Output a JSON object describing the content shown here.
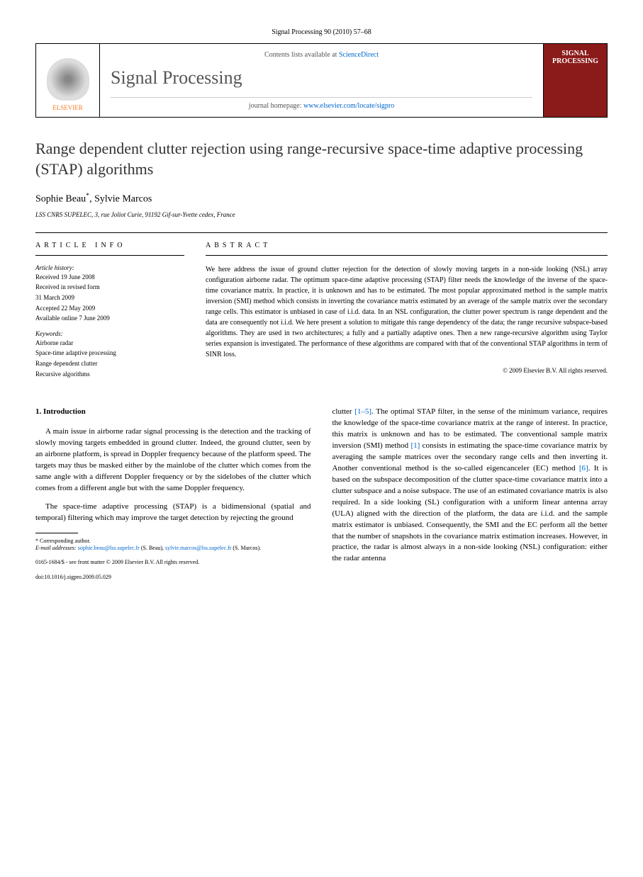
{
  "top_citation": "Signal Processing 90 (2010) 57–68",
  "header": {
    "contents_prefix": "Contents lists available at ",
    "contents_link": "ScienceDirect",
    "journal_name": "Signal Processing",
    "homepage_prefix": "journal homepage: ",
    "homepage_link": "www.elsevier.com/locate/sigpro",
    "publisher_label": "ELSEVIER",
    "cover_title": "SIGNAL PROCESSING"
  },
  "article": {
    "title": "Range dependent clutter rejection using range-recursive space-time adaptive processing (STAP) algorithms",
    "authors_html": "Sophie Beau *, Sylvie Marcos",
    "author1": "Sophie Beau",
    "author_sep": ", ",
    "author2": "Sylvie Marcos",
    "corr_mark": "*",
    "affiliation": "LSS CNRS SUPELEC, 3, rue Joliot Curie, 91192 Gif-sur-Yvette cedex, France"
  },
  "info": {
    "header": "ARTICLE INFO",
    "history_head": "Article history:",
    "received": "Received 19 June 2008",
    "revised1": "Received in revised form",
    "revised2": "31 March 2009",
    "accepted": "Accepted 22 May 2009",
    "online": "Available online 7 June 2009",
    "keywords_head": "Keywords:",
    "kw1": "Airborne radar",
    "kw2": "Space-time adaptive processing",
    "kw3": "Range dependent clutter",
    "kw4": "Recursive algorithms"
  },
  "abstract": {
    "header": "ABSTRACT",
    "text": "We here address the issue of ground clutter rejection for the detection of slowly moving targets in a non-side looking (NSL) array configuration airborne radar. The optimum space-time adaptive processing (STAP) filter needs the knowledge of the inverse of the space-time covariance matrix. In practice, it is unknown and has to be estimated. The most popular approximated method is the sample matrix inversion (SMI) method which consists in inverting the covariance matrix estimated by an average of the sample matrix over the secondary range cells. This estimator is unbiased in case of i.i.d. data. In an NSL configuration, the clutter power spectrum is range dependent and the data are consequently not i.i.d. We here present a solution to mitigate this range dependency of the data; the range recursive subspace-based algorithms. They are used in two architectures; a fully and a partially adaptive ones. Then a new range-recursive algorithm using Taylor series expansion is investigated. The performance of these algorithms are compared with that of the conventional STAP algorithms in term of SINR loss.",
    "copyright": "© 2009 Elsevier B.V. All rights reserved."
  },
  "body": {
    "section_num": "1.",
    "section_title": "Introduction",
    "col1_p1": "A main issue in airborne radar signal processing is the detection and the tracking of slowly moving targets embedded in ground clutter. Indeed, the ground clutter, seen by an airborne platform, is spread in Doppler frequency because of the platform speed. The targets may thus be masked either by the mainlobe of the clutter which comes from the same angle with a different Doppler frequency or by the sidelobes of the clutter which comes from a different angle but with the same Doppler frequency.",
    "col1_p2": "The space-time adaptive processing (STAP) is a bidimensional (spatial and temporal) filtering which may improve the target detection by rejecting the ground",
    "col2_p1_a": "clutter ",
    "col2_ref1": "[1–5]",
    "col2_p1_b": ". The optimal STAP filter, in the sense of the minimum variance, requires the knowledge of the space-time covariance matrix at the range of interest. In practice, this matrix is unknown and has to be estimated. The conventional sample matrix inversion (SMI) method ",
    "col2_ref2": "[1]",
    "col2_p1_c": " consists in estimating the space-time covariance matrix by averaging the sample matrices over the secondary range cells and then inverting it. Another conventional method is the so-called eigencanceler (EC) method ",
    "col2_ref3": "[6]",
    "col2_p1_d": ". It is based on the subspace decomposition of the clutter space-time covariance matrix into a clutter subspace and a noise subspace. The use of an estimated covariance matrix is also required. In a side looking (SL) configuration with a uniform linear antenna array (ULA) aligned with the direction of the platform, the data are i.i.d. and the sample matrix estimator is unbiased. Consequently, the SMI and the EC perform all the better that the number of snapshots in the covariance matrix estimation increases. However, in practice, the radar is almost always in a non-side looking (NSL) configuration: either the radar antenna"
  },
  "footnote": {
    "corr_label": "* Corresponding author.",
    "email_label": "E-mail addresses: ",
    "email1": "sophie.beau@lss.supelec.fr",
    "email1_who": " (S. Beau),",
    "email2": "sylvie.marcos@lss.supelec.fr",
    "email2_who": " (S. Marcos)."
  },
  "bottom": {
    "issn_line": "0165-1684/$ - see front matter © 2009 Elsevier B.V. All rights reserved.",
    "doi_line": "doi:10.1016/j.sigpro.2009.05.029"
  },
  "colors": {
    "link": "#0066cc",
    "elsevier_orange": "#f47b20",
    "cover_bg": "#8b1a1a"
  }
}
